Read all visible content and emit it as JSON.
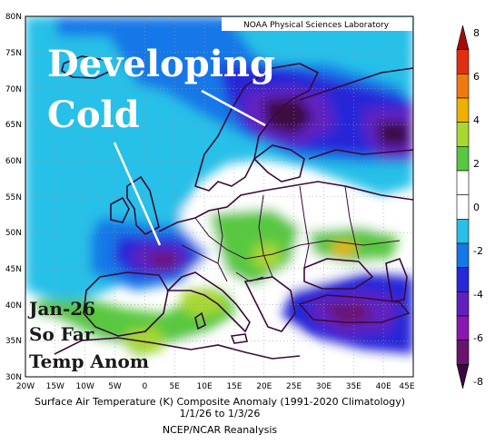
{
  "source": "NOAA Physical Sciences Laboratory",
  "overlay": {
    "headline_line1": "Developing",
    "headline_line2": "Cold",
    "note_line1": "Jan-26",
    "note_line2": "So Far",
    "note_line3": "Temp Anom"
  },
  "axes": {
    "lat_labels": [
      "80N",
      "75N",
      "70N",
      "65N",
      "60N",
      "55N",
      "50N",
      "45N",
      "40N",
      "35N",
      "30N"
    ],
    "lon_labels": [
      "20W",
      "15W",
      "10W",
      "5W",
      "0",
      "5E",
      "10E",
      "15E",
      "20E",
      "25E",
      "30E",
      "35E",
      "40E",
      "45E"
    ]
  },
  "colorbar": {
    "labels": [
      "8",
      "6",
      "4",
      "2",
      "0",
      "-2",
      "-4",
      "-6",
      "-8"
    ],
    "colors": [
      "#a50a0a",
      "#e03010",
      "#f07a10",
      "#f0b000",
      "#a8d830",
      "#58c840",
      "#ffffff",
      "#ffffff",
      "#28c0e8",
      "#1478e8",
      "#2828d8",
      "#6020c0",
      "#8a18b0",
      "#6a1470",
      "#3c0840"
    ]
  },
  "caption": {
    "line1": "Surface Air Temperature (K) Composite Anomaly (1991-2020 Climatology)",
    "line2": "1/1/26  to 1/3/26",
    "line3": "NCEP/NCAR Reanalysis"
  }
}
